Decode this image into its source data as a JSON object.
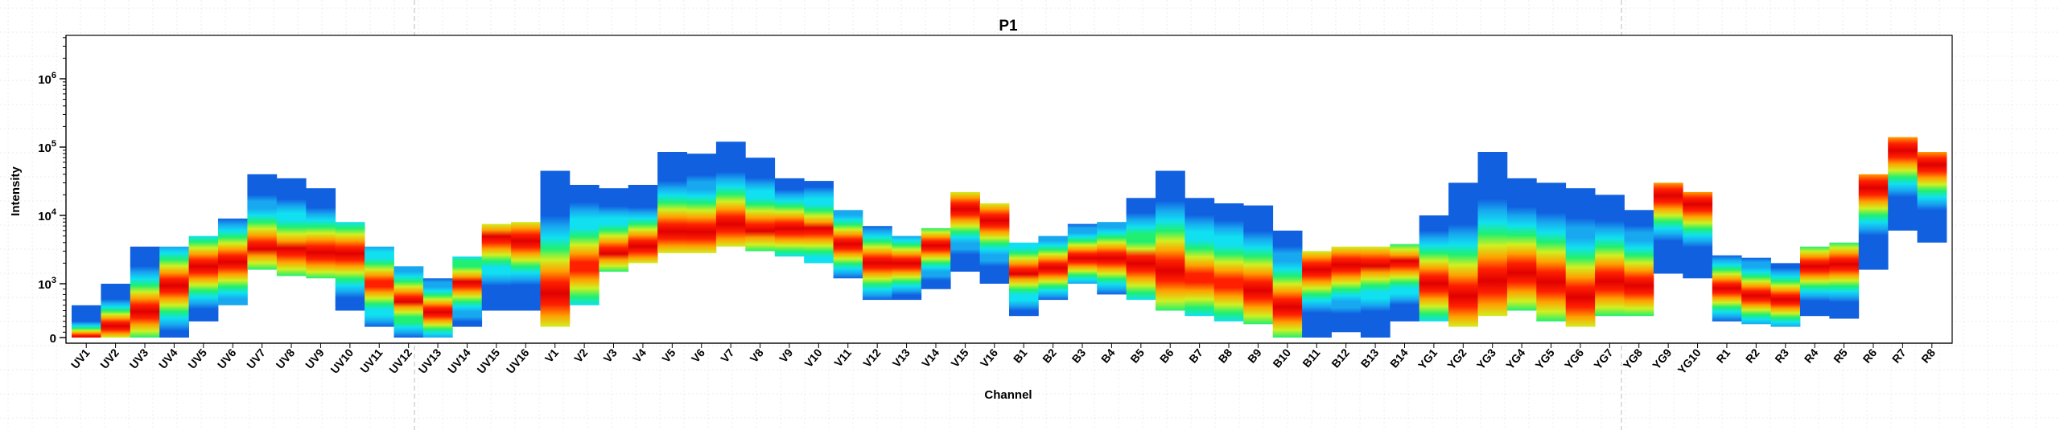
{
  "chart_data": {
    "type": "heatmap",
    "subtype": "spectral-flow-cytometry-density-plot",
    "title": "P1",
    "xlabel": "Channel",
    "ylabel": "Intensity",
    "y_scale": "biexponential (log above 10^3)",
    "y_ticks": [
      {
        "label": "0",
        "value": 0
      },
      {
        "label": "10",
        "sup": "3",
        "value": 1000
      },
      {
        "label": "10",
        "sup": "4",
        "value": 10000
      },
      {
        "label": "10",
        "sup": "5",
        "value": 100000
      },
      {
        "label": "10",
        "sup": "6",
        "value": 1000000
      }
    ],
    "ylim": [
      -200,
      5000000
    ],
    "grid": false,
    "legend": "none",
    "colormap": [
      "#1060e0",
      "#18a8f0",
      "#10e0f0",
      "#20f070",
      "#d0f020",
      "#ffa000",
      "#ff2000",
      "#e00000"
    ],
    "categories": [
      "UV1",
      "UV2",
      "UV3",
      "UV4",
      "UV5",
      "UV6",
      "UV7",
      "UV8",
      "UV9",
      "UV10",
      "UV11",
      "UV12",
      "UV13",
      "UV14",
      "UV15",
      "UV16",
      "V1",
      "V2",
      "V3",
      "V4",
      "V5",
      "V6",
      "V7",
      "V8",
      "V9",
      "V10",
      "V11",
      "V12",
      "V13",
      "V14",
      "V15",
      "V16",
      "B1",
      "B2",
      "B3",
      "B4",
      "B5",
      "B6",
      "B7",
      "B8",
      "B9",
      "B10",
      "B11",
      "B12",
      "B13",
      "B14",
      "YG1",
      "YG2",
      "YG3",
      "YG4",
      "YG5",
      "YG6",
      "YG7",
      "YG8",
      "YG9",
      "YG10",
      "R1",
      "R2",
      "R3",
      "R4",
      "R5",
      "R6",
      "R7",
      "R8"
    ],
    "columns": [
      {
        "channel": "UV1",
        "low": 0,
        "high": 600,
        "peak": 0
      },
      {
        "channel": "UV2",
        "low": 0,
        "high": 1000,
        "peak": 200
      },
      {
        "channel": "UV3",
        "low": 0,
        "high": 3500,
        "peak": 500
      },
      {
        "channel": "UV4",
        "low": 0,
        "high": 3500,
        "peak": 1000
      },
      {
        "channel": "UV5",
        "low": 300,
        "high": 5000,
        "peak": 1800
      },
      {
        "channel": "UV6",
        "low": 600,
        "high": 9000,
        "peak": 2000
      },
      {
        "channel": "UV7",
        "low": 1600,
        "high": 40000,
        "peak": 3500
      },
      {
        "channel": "UV8",
        "low": 1300,
        "high": 35000,
        "peak": 3000
      },
      {
        "channel": "UV9",
        "low": 1200,
        "high": 25000,
        "peak": 2800
      },
      {
        "channel": "UV10",
        "low": 500,
        "high": 8000,
        "peak": 2800
      },
      {
        "channel": "UV11",
        "low": 200,
        "high": 3500,
        "peak": 1000
      },
      {
        "channel": "UV12",
        "low": 0,
        "high": 1800,
        "peak": 700
      },
      {
        "channel": "UV13",
        "low": 0,
        "high": 1200,
        "peak": 500
      },
      {
        "channel": "UV14",
        "low": 200,
        "high": 2500,
        "peak": 1000
      },
      {
        "channel": "UV15",
        "low": 500,
        "high": 7500,
        "peak": 4500
      },
      {
        "channel": "UV16",
        "low": 500,
        "high": 8000,
        "peak": 4500
      },
      {
        "channel": "V1",
        "low": 200,
        "high": 45000,
        "peak": 800
      },
      {
        "channel": "V2",
        "low": 600,
        "high": 28000,
        "peak": 1800
      },
      {
        "channel": "V3",
        "low": 1500,
        "high": 25000,
        "peak": 3000
      },
      {
        "channel": "V4",
        "low": 2000,
        "high": 28000,
        "peak": 3500
      },
      {
        "channel": "V5",
        "low": 2800,
        "high": 85000,
        "peak": 6000
      },
      {
        "channel": "V6",
        "low": 2800,
        "high": 80000,
        "peak": 6000
      },
      {
        "channel": "V7",
        "low": 3500,
        "high": 120000,
        "peak": 7500
      },
      {
        "channel": "V8",
        "low": 3000,
        "high": 70000,
        "peak": 6500
      },
      {
        "channel": "V9",
        "low": 2500,
        "high": 35000,
        "peak": 6000
      },
      {
        "channel": "V10",
        "low": 2000,
        "high": 32000,
        "peak": 6000
      },
      {
        "channel": "V11",
        "low": 1200,
        "high": 12000,
        "peak": 4000
      },
      {
        "channel": "V12",
        "low": 700,
        "high": 7000,
        "peak": 2000
      },
      {
        "channel": "V13",
        "low": 700,
        "high": 5000,
        "peak": 2000
      },
      {
        "channel": "V14",
        "low": 900,
        "high": 6500,
        "peak": 3500
      },
      {
        "channel": "V15",
        "low": 1500,
        "high": 22000,
        "peak": 12000
      },
      {
        "channel": "V16",
        "low": 1000,
        "high": 15000,
        "peak": 8000
      },
      {
        "channel": "B1",
        "low": 400,
        "high": 4000,
        "peak": 1500
      },
      {
        "channel": "B2",
        "low": 700,
        "high": 5000,
        "peak": 1800
      },
      {
        "channel": "B3",
        "low": 1000,
        "high": 7500,
        "peak": 2500
      },
      {
        "channel": "B4",
        "low": 800,
        "high": 8000,
        "peak": 2500
      },
      {
        "channel": "B5",
        "low": 700,
        "high": 18000,
        "peak": 1800
      },
      {
        "channel": "B6",
        "low": 500,
        "high": 45000,
        "peak": 1500
      },
      {
        "channel": "B7",
        "low": 400,
        "high": 18000,
        "peak": 1200
      },
      {
        "channel": "B8",
        "low": 300,
        "high": 15000,
        "peak": 1000
      },
      {
        "channel": "B9",
        "low": 250,
        "high": 14000,
        "peak": 900
      },
      {
        "channel": "B10",
        "low": 0,
        "high": 6000,
        "peak": 600
      },
      {
        "channel": "B11",
        "low": 0,
        "high": 3000,
        "peak": 1600
      },
      {
        "channel": "B12",
        "low": 100,
        "high": 3500,
        "peak": 1800
      },
      {
        "channel": "B13",
        "low": 0,
        "high": 3500,
        "peak": 2000
      },
      {
        "channel": "B14",
        "low": 300,
        "high": 3800,
        "peak": 2000
      },
      {
        "channel": "YG1",
        "low": 300,
        "high": 10000,
        "peak": 1000
      },
      {
        "channel": "YG2",
        "low": 200,
        "high": 30000,
        "peak": 800
      },
      {
        "channel": "YG3",
        "low": 400,
        "high": 85000,
        "peak": 1000
      },
      {
        "channel": "YG4",
        "low": 500,
        "high": 35000,
        "peak": 1400
      },
      {
        "channel": "YG5",
        "low": 300,
        "high": 30000,
        "peak": 1000
      },
      {
        "channel": "YG6",
        "low": 200,
        "high": 25000,
        "peak": 800
      },
      {
        "channel": "YG7",
        "low": 400,
        "high": 20000,
        "peak": 1000
      },
      {
        "channel": "YG8",
        "low": 400,
        "high": 12000,
        "peak": 1000
      },
      {
        "channel": "YG9",
        "low": 1400,
        "high": 30000,
        "peak": 20000
      },
      {
        "channel": "YG10",
        "low": 1200,
        "high": 22000,
        "peak": 15000
      },
      {
        "channel": "R1",
        "low": 300,
        "high": 2600,
        "peak": 900
      },
      {
        "channel": "R2",
        "low": 250,
        "high": 2400,
        "peak": 800
      },
      {
        "channel": "R3",
        "low": 200,
        "high": 2000,
        "peak": 700
      },
      {
        "channel": "R4",
        "low": 400,
        "high": 3500,
        "peak": 1800
      },
      {
        "channel": "R5",
        "low": 350,
        "high": 4000,
        "peak": 2000
      },
      {
        "channel": "R6",
        "low": 1600,
        "high": 40000,
        "peak": 25000
      },
      {
        "channel": "R7",
        "low": 6000,
        "high": 140000,
        "peak": 90000
      },
      {
        "channel": "R8",
        "low": 4000,
        "high": 85000,
        "peak": 55000
      }
    ]
  }
}
